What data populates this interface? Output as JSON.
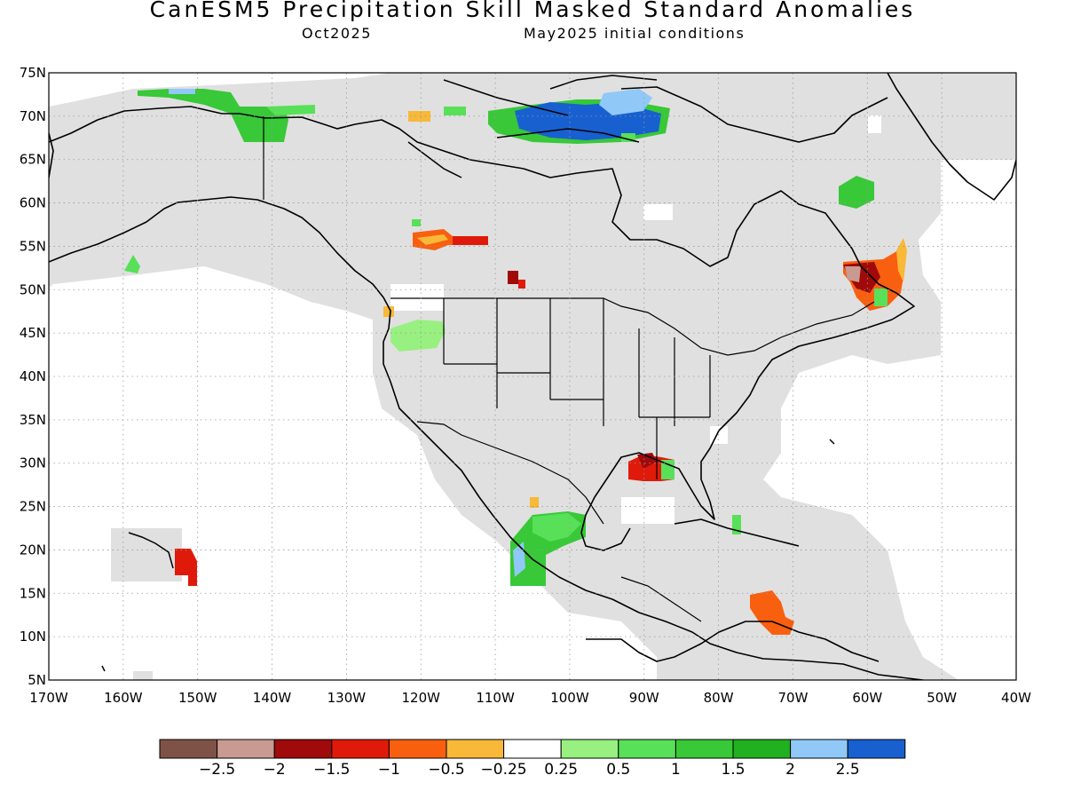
{
  "title": "CanESM5 Precipitation Skill Masked Standard Anomalies",
  "valid_month": "Oct2025",
  "init": "May2025 initial conditions",
  "map": {
    "lon_range": [
      -170,
      -40
    ],
    "lat_range": [
      5,
      75
    ],
    "lat_ticks": [
      "75N",
      "70N",
      "65N",
      "60N",
      "55N",
      "50N",
      "45N",
      "40N",
      "35N",
      "30N",
      "25N",
      "20N",
      "15N",
      "10N",
      "5N"
    ],
    "lon_ticks": [
      "170W",
      "160W",
      "150W",
      "140W",
      "130W",
      "120W",
      "110W",
      "100W",
      "90W",
      "80W",
      "70W",
      "60W",
      "50W",
      "40W"
    ],
    "grid": "dotted",
    "mask_color": "#e0e0e0",
    "coastline_color": "#000000"
  },
  "colorbar": {
    "colors": [
      "#7f5248",
      "#c89a92",
      "#a00a0a",
      "#e01a0a",
      "#f86010",
      "#f8b838",
      "#ffffff",
      "#98f080",
      "#58e058",
      "#38c838",
      "#20b020",
      "#90c8f8",
      "#1860d0"
    ],
    "labels": [
      "−2.5",
      "−2",
      "−1.5",
      "−1",
      "−0.5",
      "−0.25",
      "0.25",
      "0.5",
      "1",
      "1.5",
      "2",
      "2.5"
    ]
  }
}
